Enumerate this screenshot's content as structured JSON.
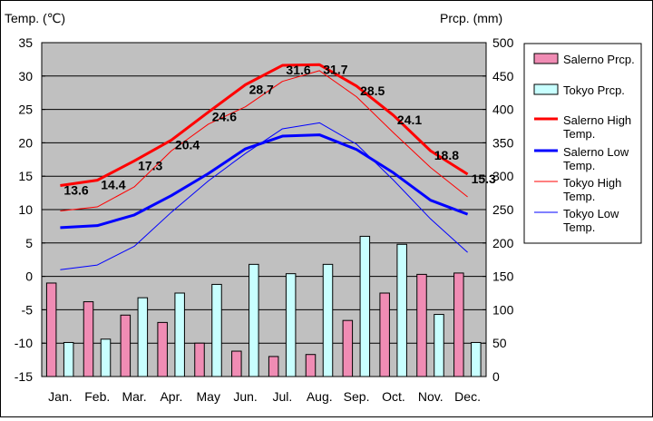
{
  "chart_data": {
    "type": "bar+line",
    "title": "",
    "left_axis_label": "Temp. (℃)",
    "right_axis_label": "Prcp. (mm)",
    "categories": [
      "Jan.",
      "Feb.",
      "Mar.",
      "Apr.",
      "May",
      "Jun.",
      "Jul.",
      "Aug.",
      "Sep.",
      "Oct.",
      "Nov.",
      "Dec."
    ],
    "temp_range": [
      -15,
      35
    ],
    "temp_ticks": [
      35,
      30,
      25,
      20,
      15,
      10,
      5,
      0,
      -5,
      -10,
      -15
    ],
    "prcp_range": [
      0,
      500
    ],
    "prcp_ticks": [
      500,
      450,
      400,
      350,
      300,
      250,
      200,
      150,
      100,
      50,
      0
    ],
    "bars": [
      {
        "name": "Salerno Prcp.",
        "color": "#f08cb4",
        "values": [
          140,
          112,
          92,
          81,
          50,
          38,
          30,
          33,
          84,
          125,
          153,
          155
        ]
      },
      {
        "name": "Tokyo Prcp.",
        "color": "#c8ffff",
        "values": [
          51,
          56,
          118,
          125,
          138,
          168,
          154,
          168,
          210,
          198,
          93,
          51
        ]
      }
    ],
    "lines": [
      {
        "name": "Salerno High Temp.",
        "color": "#ff0000",
        "width": 3,
        "values": [
          13.6,
          14.4,
          17.3,
          20.4,
          24.6,
          28.7,
          31.6,
          31.7,
          28.5,
          24.1,
          18.8,
          15.3
        ],
        "labels": [
          "13.6",
          "14.4",
          "17.3",
          "20.4",
          "24.6",
          "28.7",
          "31.6",
          "31.7",
          "28.5",
          "24.1",
          "18.8",
          "15.3"
        ]
      },
      {
        "name": "Salerno Low Temp.",
        "color": "#0000ff",
        "width": 3,
        "values": [
          7.3,
          7.6,
          9.2,
          12.1,
          15.4,
          19.1,
          21.0,
          21.2,
          19.0,
          15.5,
          11.4,
          9.3
        ]
      },
      {
        "name": "Tokyo High Temp.",
        "color": "#ff0000",
        "width": 1,
        "values": [
          9.8,
          10.4,
          13.4,
          18.8,
          22.8,
          25.4,
          29.2,
          30.8,
          26.9,
          21.5,
          16.3,
          11.9
        ]
      },
      {
        "name": "Tokyo Low Temp.",
        "color": "#0000ff",
        "width": 1,
        "values": [
          1.0,
          1.7,
          4.5,
          9.6,
          14.3,
          18.4,
          22.1,
          23.0,
          19.8,
          14.4,
          8.6,
          3.6
        ]
      }
    ],
    "legend_position": "right",
    "grid": true
  }
}
